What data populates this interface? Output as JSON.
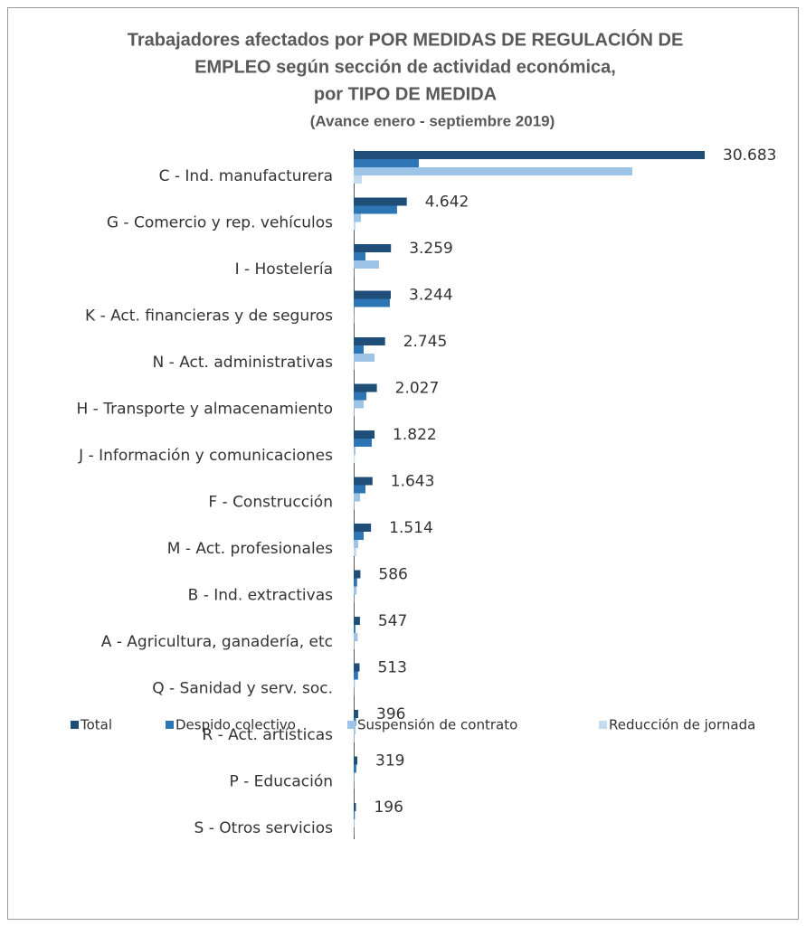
{
  "chart_data": {
    "type": "hbar",
    "title": [
      "Trabajadores afectados por POR MEDIDAS DE REGULACIÓN DE",
      "EMPLEO según sección de actividad económica,",
      "por TIPO DE MEDIDA"
    ],
    "subtitle": "(Avance enero - septiembre 2019)",
    "categories": [
      "C - Ind. manufacturera",
      "G - Comercio y rep. vehículos",
      "I - Hostelería",
      "K - Act. financieras y de seguros",
      "N - Act. administrativas",
      "H - Transporte y almacenamiento",
      "J - Información y comunicaciones",
      "F - Construcción",
      "M - Act. profesionales",
      "B - Ind. extractivas",
      "A - Agricultura, ganadería, etc",
      "Q - Sanidad y serv. soc.",
      "R - Act. artísticas",
      "P - Educación",
      "S - Otros servicios"
    ],
    "series": [
      {
        "name": "Total",
        "color": "#1f4e79",
        "values": [
          30683,
          4642,
          3259,
          3244,
          2745,
          2027,
          1822,
          1643,
          1514,
          586,
          547,
          513,
          396,
          319,
          196
        ],
        "value_labels": [
          "30.683",
          "4.642",
          "3.259",
          "3.244",
          "2.745",
          "2.027",
          "1.822",
          "1.643",
          "1.514",
          "586",
          "547",
          "513",
          "396",
          "319",
          "196"
        ]
      },
      {
        "name": "Despido colectivo",
        "color": "#2e75b6",
        "values": [
          5690,
          3790,
          1030,
          3160,
          870,
          1110,
          1580,
          1030,
          870,
          300,
          150,
          380,
          200,
          230,
          100
        ]
      },
      {
        "name": "Suspensión de contrato",
        "color": "#9dc3e6",
        "values": [
          24350,
          630,
          2210,
          40,
          1820,
          870,
          150,
          560,
          400,
          250,
          350,
          100,
          150,
          60,
          80
        ]
      },
      {
        "name": "Reducción de jornada",
        "color": "#c5dcf0",
        "values": [
          710,
          160,
          20,
          40,
          50,
          50,
          90,
          50,
          240,
          30,
          50,
          30,
          50,
          30,
          20
        ]
      }
    ],
    "legend": "bottom"
  }
}
